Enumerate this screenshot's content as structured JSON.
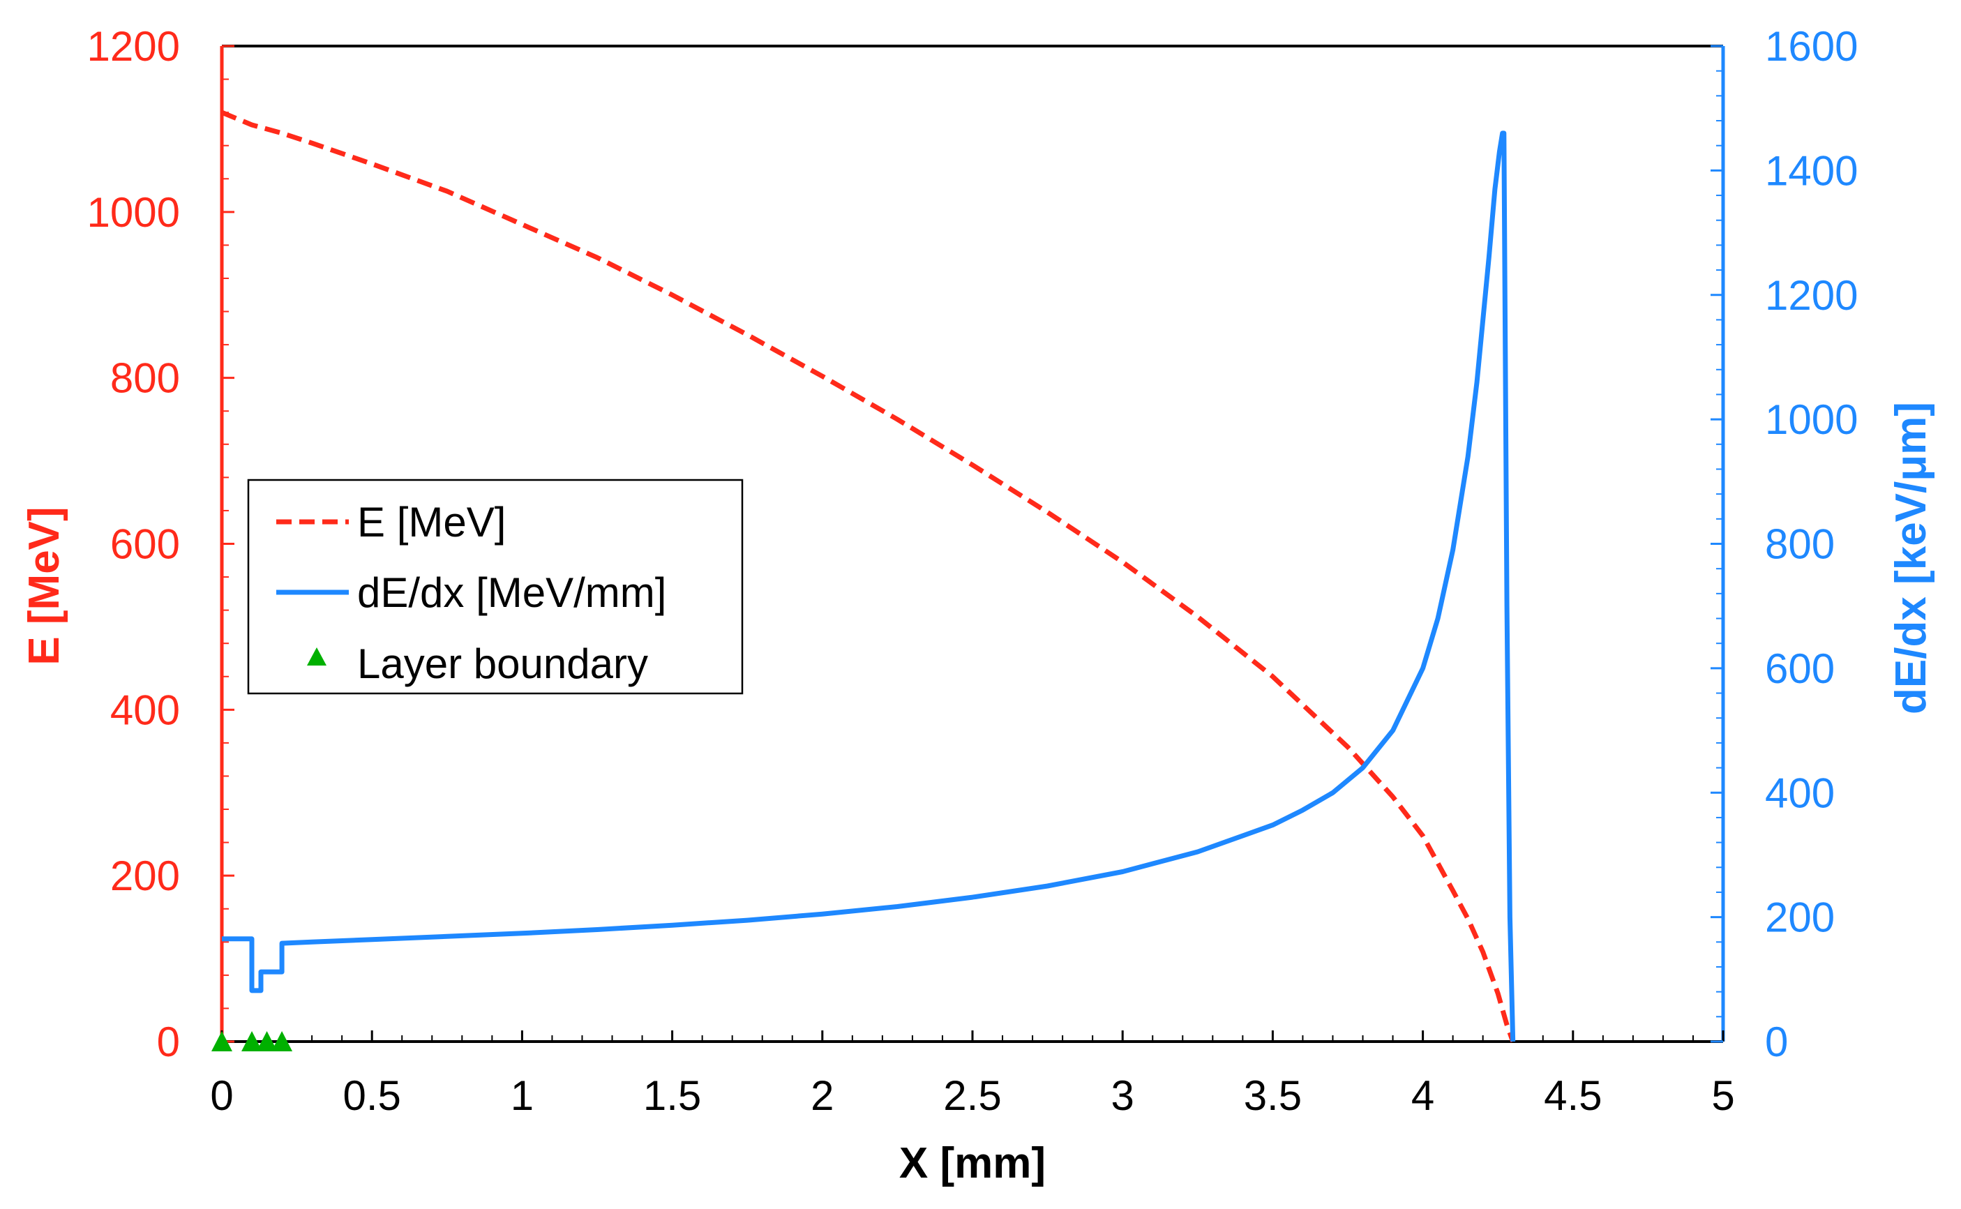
{
  "chart_data": {
    "type": "line",
    "title": "",
    "xlabel": "X [mm]",
    "ylabel_left": "E [MeV]",
    "ylabel_right": "dE/dx [keV/μm]",
    "xlim": [
      0,
      5
    ],
    "ylim_left": [
      0,
      1200
    ],
    "ylim_right": [
      0,
      1600
    ],
    "x_ticks": [
      "0",
      "0.5",
      "1",
      "1.5",
      "2",
      "2.5",
      "3",
      "3.5",
      "4",
      "4.5",
      "5"
    ],
    "y_left_ticks": [
      "0",
      "200",
      "400",
      "600",
      "800",
      "1000",
      "1200"
    ],
    "y_right_ticks": [
      "0",
      "200",
      "400",
      "600",
      "800",
      "1000",
      "1200",
      "1400",
      "1600"
    ],
    "grid": false,
    "legend_position": "center-left",
    "colors": {
      "energy": "#ff2a1a",
      "dedx": "#1e88ff",
      "boundary": "#00b000",
      "frame": "#000000"
    },
    "series": [
      {
        "name": "E [MeV]",
        "axis": "left",
        "style": "dashed",
        "x": [
          0,
          0.1,
          0.2,
          0.3,
          0.5,
          0.75,
          1.0,
          1.25,
          1.5,
          1.75,
          2.0,
          2.25,
          2.5,
          2.75,
          3.0,
          3.25,
          3.5,
          3.75,
          3.9,
          4.0,
          4.1,
          4.15,
          4.2,
          4.25,
          4.28,
          4.3
        ],
        "values": [
          1120,
          1105,
          1095,
          1083,
          1058,
          1025,
          985,
          945,
          900,
          852,
          802,
          750,
          695,
          638,
          578,
          512,
          440,
          355,
          295,
          248,
          182,
          148,
          108,
          58,
          20,
          0
        ]
      },
      {
        "name": "dE/dx [MeV/mm]",
        "axis": "right",
        "style": "solid",
        "x": [
          0,
          0.1,
          0.1,
          0.13,
          0.13,
          0.16,
          0.16,
          0.2,
          0.2,
          0.3,
          0.5,
          0.75,
          1.0,
          1.25,
          1.5,
          1.75,
          2.0,
          2.25,
          2.5,
          2.75,
          3.0,
          3.25,
          3.5,
          3.6,
          3.7,
          3.8,
          3.9,
          4.0,
          4.05,
          4.1,
          4.15,
          4.18,
          4.2,
          4.22,
          4.24,
          4.255,
          4.265,
          4.27,
          4.28,
          4.29,
          4.3
        ],
        "values": [
          165,
          165,
          82,
          82,
          112,
          112,
          112,
          112,
          158,
          160,
          164,
          169,
          174,
          180,
          187,
          195,
          205,
          217,
          232,
          250,
          273,
          305,
          348,
          372,
          400,
          440,
          500,
          600,
          680,
          790,
          940,
          1060,
          1160,
          1260,
          1370,
          1430,
          1460,
          1460,
          700,
          200,
          0
        ]
      },
      {
        "name": "Layer boundary",
        "axis": "left",
        "style": "marker",
        "x": [
          0,
          0.1,
          0.15,
          0.2
        ],
        "values": [
          0,
          0,
          0,
          0
        ]
      }
    ],
    "legend": [
      "E [MeV]",
      "dE/dx [MeV/mm]",
      "Layer boundary"
    ]
  }
}
